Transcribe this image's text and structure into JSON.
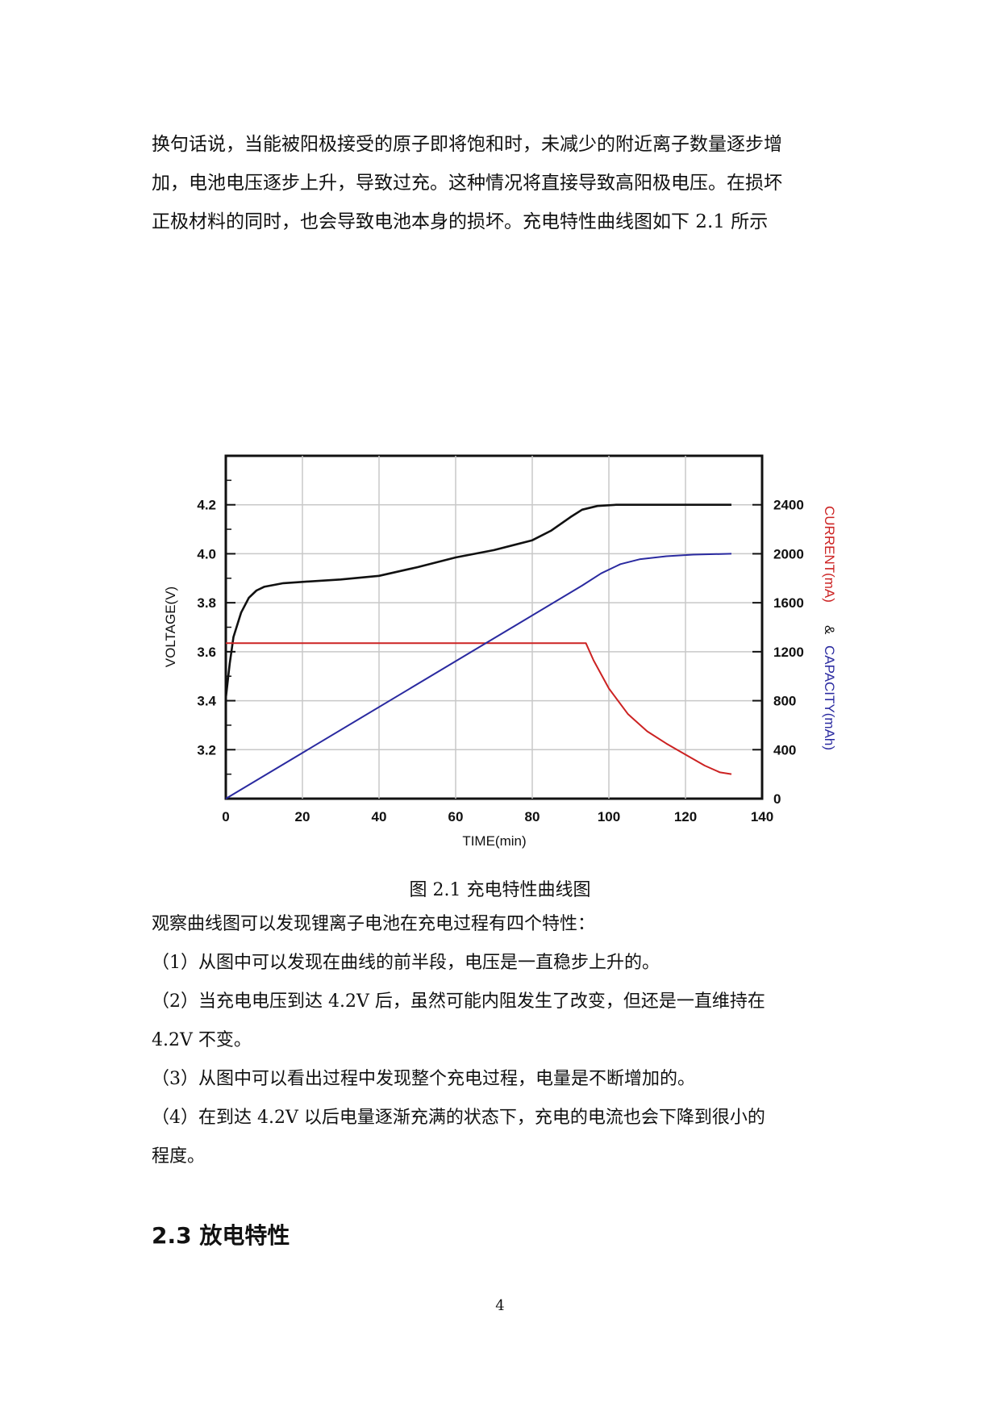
{
  "intro_paragraph": [
    "换句话说，当能被阳极接受的原子即将饱和时，未减少的附近离子数量逐步增",
    "加，电池电压逐步上升，导致过充。这种情况将直接导致高阳极电压。在损坏",
    "正极材料的同时，也会导致电池本身的损坏。充电特性曲线图如下 2.1 所示"
  ],
  "chart_data": {
    "type": "line",
    "title": "",
    "xlabel": "TIME(min)",
    "ylabel_left": "VOLTAGE(V)",
    "ylabel_right_current": "CURRENT(mA)",
    "ylabel_right_amp": "&",
    "ylabel_right_capacity": "CAPACITY(mAh)",
    "xlim": [
      0,
      140
    ],
    "x_ticks": [
      "0",
      "20",
      "40",
      "60",
      "80",
      "100",
      "120",
      "140"
    ],
    "ylim_left": [
      3.0,
      4.4
    ],
    "y_ticks_left": [
      "3.2",
      "3.4",
      "3.6",
      "3.8",
      "4.0",
      "4.2"
    ],
    "ylim_right": [
      0,
      2800
    ],
    "y_ticks_right": [
      "0",
      "400",
      "800",
      "1200",
      "1600",
      "2000",
      "2400"
    ],
    "grid": true,
    "series": [
      {
        "axis": "left",
        "color": "#111111",
        "points": [
          [
            0,
            3.41
          ],
          [
            1,
            3.55
          ],
          [
            2,
            3.66
          ],
          [
            4,
            3.76
          ],
          [
            6,
            3.82
          ],
          [
            8,
            3.85
          ],
          [
            10,
            3.865
          ],
          [
            15,
            3.88
          ],
          [
            20,
            3.885
          ],
          [
            30,
            3.895
          ],
          [
            40,
            3.91
          ],
          [
            50,
            3.945
          ],
          [
            60,
            3.985
          ],
          [
            70,
            4.015
          ],
          [
            80,
            4.055
          ],
          [
            85,
            4.095
          ],
          [
            90,
            4.15
          ],
          [
            93,
            4.18
          ],
          [
            97,
            4.195
          ],
          [
            102,
            4.2
          ],
          [
            132,
            4.2
          ]
        ]
      },
      {
        "axis": "right",
        "color": "#cc2222",
        "points": [
          [
            0,
            1270
          ],
          [
            94,
            1270
          ],
          [
            96,
            1130
          ],
          [
            100,
            900
          ],
          [
            105,
            690
          ],
          [
            110,
            550
          ],
          [
            115,
            450
          ],
          [
            120,
            360
          ],
          [
            125,
            270
          ],
          [
            129,
            215
          ],
          [
            132,
            200
          ]
        ]
      },
      {
        "axis": "right",
        "color": "#2a2aa0",
        "points": [
          [
            0,
            0
          ],
          [
            93,
            1740
          ],
          [
            98,
            1840
          ],
          [
            103,
            1915
          ],
          [
            108,
            1955
          ],
          [
            115,
            1980
          ],
          [
            122,
            1993
          ],
          [
            132,
            2000
          ]
        ]
      }
    ]
  },
  "caption": "图 2.1 充电特性曲线图",
  "observations": [
    " 观察曲线图可以发现锂离子电池在充电过程有四个特性：",
    "（1）从图中可以发现在曲线的前半段，电压是一直稳步上升的。",
    "（2）当充电电压到达 4.2V 后，虽然可能内阻发生了改变，但还是一直维持在",
    "4.2V 不变。",
    "（3）从图中可以看出过程中发现整个充电过程，电量是不断增加的。",
    "（4）在到达 4.2V 以后电量逐渐充满的状态下，充电的电流也会下降到很小的",
    "程度。"
  ],
  "section_heading": "2.3 放电特性",
  "page_number": "4"
}
